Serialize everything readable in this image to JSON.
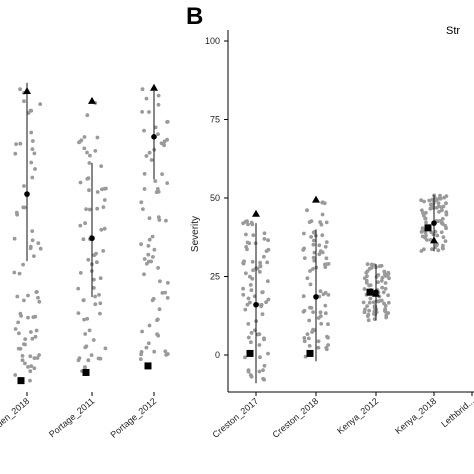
{
  "panel_b_letter": "B",
  "legend_fragment": "Str",
  "chart_data": [
    {
      "type": "scatter",
      "panel": "A (partially cropped)",
      "categories": [
        "...rden_2018",
        "Portage_2011",
        "Portage_2012"
      ],
      "ylim": [
        -3,
        111
      ],
      "grid": false,
      "series": [
        {
          "category": "...rden_2018",
          "mean": 49.5,
          "sd_low": 29,
          "sd_high": 83.5,
          "triangle": 81,
          "square": -7.5
        },
        {
          "category": "Portage_2011",
          "mean": 36,
          "sd_low": 18,
          "sd_high": 59,
          "triangle": 78,
          "square": -5
        },
        {
          "category": "Portage_2012",
          "mean": 67,
          "sd_low": 54,
          "sd_high": 81,
          "triangle": 82,
          "square": -3
        }
      ]
    },
    {
      "type": "scatter",
      "panel": "B",
      "ylabel": "Severity",
      "categories": [
        "Creston_2017",
        "Creston_2018",
        "Kenya_2012",
        "Kenya_2018",
        "Lethbrid..."
      ],
      "yticks": [
        0,
        25,
        50,
        75,
        100
      ],
      "ylim": [
        -12,
        106
      ],
      "grid": false,
      "series": [
        {
          "category": "Creston_2017",
          "mean": 16,
          "sd_low": -9,
          "sd_high": 42,
          "triangle": 45,
          "square": 0.5
        },
        {
          "category": "Creston_2018",
          "mean": 18.5,
          "sd_low": -2,
          "sd_high": 40,
          "triangle": 49.5,
          "square": 0.5
        },
        {
          "category": "Kenya_2012",
          "mean": 20,
          "sd_low": 11,
          "sd_high": 29,
          "triangle": 19.5,
          "square": 20
        },
        {
          "category": "Kenya_2018",
          "mean": 42,
          "sd_low": 33,
          "sd_high": 51,
          "triangle": 36.5,
          "square": 40.5
        }
      ]
    }
  ]
}
